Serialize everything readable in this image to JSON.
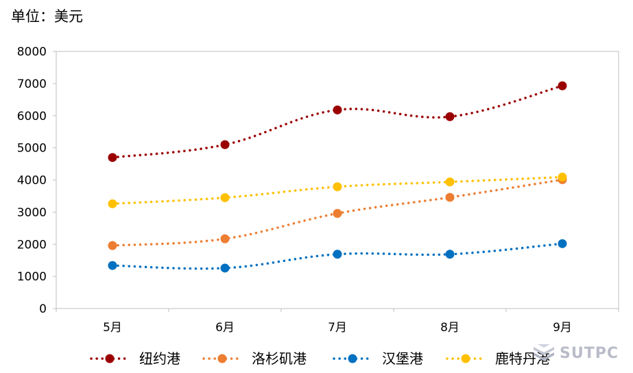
{
  "unit_label": "单位：美元",
  "watermark": {
    "text": "SUTPC",
    "icon": "sutpc-logo-icon"
  },
  "chart_data": {
    "type": "line",
    "title": "",
    "xlabel": "",
    "ylabel": "",
    "categories": [
      "5月",
      "6月",
      "7月",
      "8月",
      "9月"
    ],
    "ylim": [
      0,
      8000
    ],
    "yticks": [
      0,
      1000,
      2000,
      3000,
      4000,
      5000,
      6000,
      7000,
      8000
    ],
    "grid": false,
    "legend_position": "bottom",
    "line_style": "dotted",
    "series": [
      {
        "name": "纽约港",
        "color": "#9b0000",
        "values": [
          4700,
          5100,
          6180,
          5970,
          6930
        ]
      },
      {
        "name": "洛杉矶港",
        "color": "#ed7d31",
        "values": [
          1960,
          2170,
          2960,
          3460,
          4010
        ]
      },
      {
        "name": "汉堡港",
        "color": "#0070c0",
        "values": [
          1340,
          1260,
          1690,
          1690,
          2020
        ]
      },
      {
        "name": "鹿特丹港",
        "color": "#ffc000",
        "values": [
          3260,
          3450,
          3790,
          3940,
          4090
        ]
      }
    ]
  }
}
